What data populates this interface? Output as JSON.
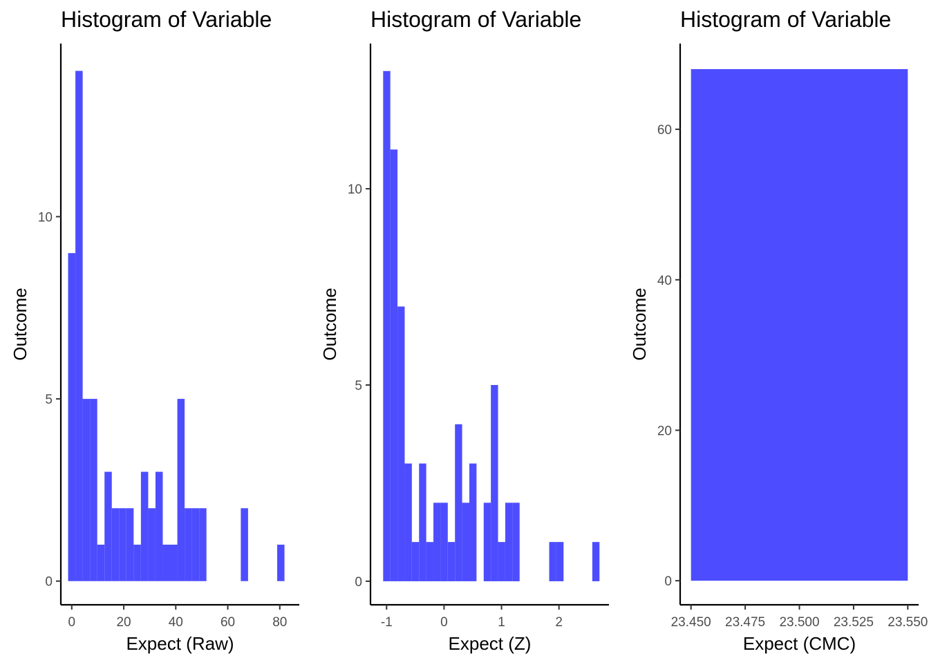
{
  "chart_data": [
    {
      "type": "bar",
      "title": "Histogram of Variable",
      "xlabel": "Expect (Raw)",
      "ylabel": "Outcome",
      "xlim": [
        -4.2,
        87.5
      ],
      "ylim": [
        -0.65,
        14.75
      ],
      "xticks": [
        0,
        20,
        40,
        60,
        80
      ],
      "xtick_labels": [
        "0",
        "20",
        "40",
        "60",
        "80"
      ],
      "yticks": [
        0,
        5,
        10
      ],
      "ytick_labels": [
        "0",
        "5",
        "10"
      ],
      "bar_color": "#4d4dff",
      "grid": false,
      "bins": [
        {
          "x0": -1.4,
          "x1": 1.4,
          "count": 9
        },
        {
          "x0": 1.4,
          "x1": 4.2,
          "count": 14
        },
        {
          "x0": 4.2,
          "x1": 7.0,
          "count": 5
        },
        {
          "x0": 7.0,
          "x1": 9.8,
          "count": 5
        },
        {
          "x0": 9.8,
          "x1": 12.6,
          "count": 1
        },
        {
          "x0": 12.6,
          "x1": 15.4,
          "count": 3
        },
        {
          "x0": 15.4,
          "x1": 18.2,
          "count": 2
        },
        {
          "x0": 18.2,
          "x1": 21.0,
          "count": 2
        },
        {
          "x0": 21.0,
          "x1": 23.8,
          "count": 2
        },
        {
          "x0": 23.8,
          "x1": 26.6,
          "count": 1
        },
        {
          "x0": 26.6,
          "x1": 29.4,
          "count": 3
        },
        {
          "x0": 29.4,
          "x1": 32.2,
          "count": 2
        },
        {
          "x0": 32.2,
          "x1": 35.0,
          "count": 3
        },
        {
          "x0": 35.0,
          "x1": 37.8,
          "count": 1
        },
        {
          "x0": 37.8,
          "x1": 40.6,
          "count": 1
        },
        {
          "x0": 40.6,
          "x1": 43.4,
          "count": 5
        },
        {
          "x0": 43.4,
          "x1": 46.2,
          "count": 2
        },
        {
          "x0": 46.2,
          "x1": 49.0,
          "count": 2
        },
        {
          "x0": 49.0,
          "x1": 51.8,
          "count": 2
        },
        {
          "x0": 65.0,
          "x1": 67.8,
          "count": 2
        },
        {
          "x0": 79.0,
          "x1": 81.8,
          "count": 1
        }
      ]
    },
    {
      "type": "bar",
      "title": "Histogram of Variable",
      "xlabel": "Expect (Z)",
      "ylabel": "Outcome",
      "xlim": [
        -1.28,
        2.87
      ],
      "ylim": [
        -0.6,
        13.7
      ],
      "xticks": [
        -1,
        0,
        1,
        2
      ],
      "xtick_labels": [
        "-1",
        "0",
        "1",
        "2"
      ],
      "yticks": [
        0,
        5,
        10
      ],
      "ytick_labels": [
        "0",
        "5",
        "10"
      ],
      "bar_color": "#4d4dff",
      "grid": false,
      "bins": [
        {
          "x0": -1.06,
          "x1": -0.935,
          "count": 13
        },
        {
          "x0": -0.935,
          "x1": -0.81,
          "count": 11
        },
        {
          "x0": -0.81,
          "x1": -0.685,
          "count": 7
        },
        {
          "x0": -0.685,
          "x1": -0.56,
          "count": 3
        },
        {
          "x0": -0.56,
          "x1": -0.435,
          "count": 1
        },
        {
          "x0": -0.435,
          "x1": -0.31,
          "count": 3
        },
        {
          "x0": -0.31,
          "x1": -0.185,
          "count": 1
        },
        {
          "x0": -0.185,
          "x1": -0.06,
          "count": 2
        },
        {
          "x0": -0.06,
          "x1": 0.065,
          "count": 2
        },
        {
          "x0": 0.065,
          "x1": 0.19,
          "count": 1
        },
        {
          "x0": 0.19,
          "x1": 0.315,
          "count": 4
        },
        {
          "x0": 0.315,
          "x1": 0.44,
          "count": 2
        },
        {
          "x0": 0.44,
          "x1": 0.565,
          "count": 3
        },
        {
          "x0": 0.69,
          "x1": 0.815,
          "count": 2
        },
        {
          "x0": 0.815,
          "x1": 0.94,
          "count": 5
        },
        {
          "x0": 0.94,
          "x1": 1.065,
          "count": 1
        },
        {
          "x0": 1.065,
          "x1": 1.19,
          "count": 2
        },
        {
          "x0": 1.19,
          "x1": 1.315,
          "count": 2
        },
        {
          "x0": 1.83,
          "x1": 1.955,
          "count": 1
        },
        {
          "x0": 1.955,
          "x1": 2.08,
          "count": 1
        },
        {
          "x0": 2.58,
          "x1": 2.705,
          "count": 1
        }
      ]
    },
    {
      "type": "bar",
      "title": "Histogram of Variable",
      "xlabel": "Expect (CMC)",
      "ylabel": "Outcome",
      "xlim": [
        23.445,
        23.555
      ],
      "ylim": [
        -3.2,
        71.4
      ],
      "xticks": [
        23.45,
        23.475,
        23.5,
        23.525,
        23.55
      ],
      "xtick_labels": [
        "23.450",
        "23.475",
        "23.500",
        "23.525",
        "23.550"
      ],
      "yticks": [
        0,
        20,
        40,
        60
      ],
      "ytick_labels": [
        "0",
        "20",
        "40",
        "60"
      ],
      "bar_color": "#4d4dff",
      "grid": false,
      "bins": [
        {
          "x0": 23.45,
          "x1": 23.55,
          "count": 68
        }
      ]
    }
  ]
}
